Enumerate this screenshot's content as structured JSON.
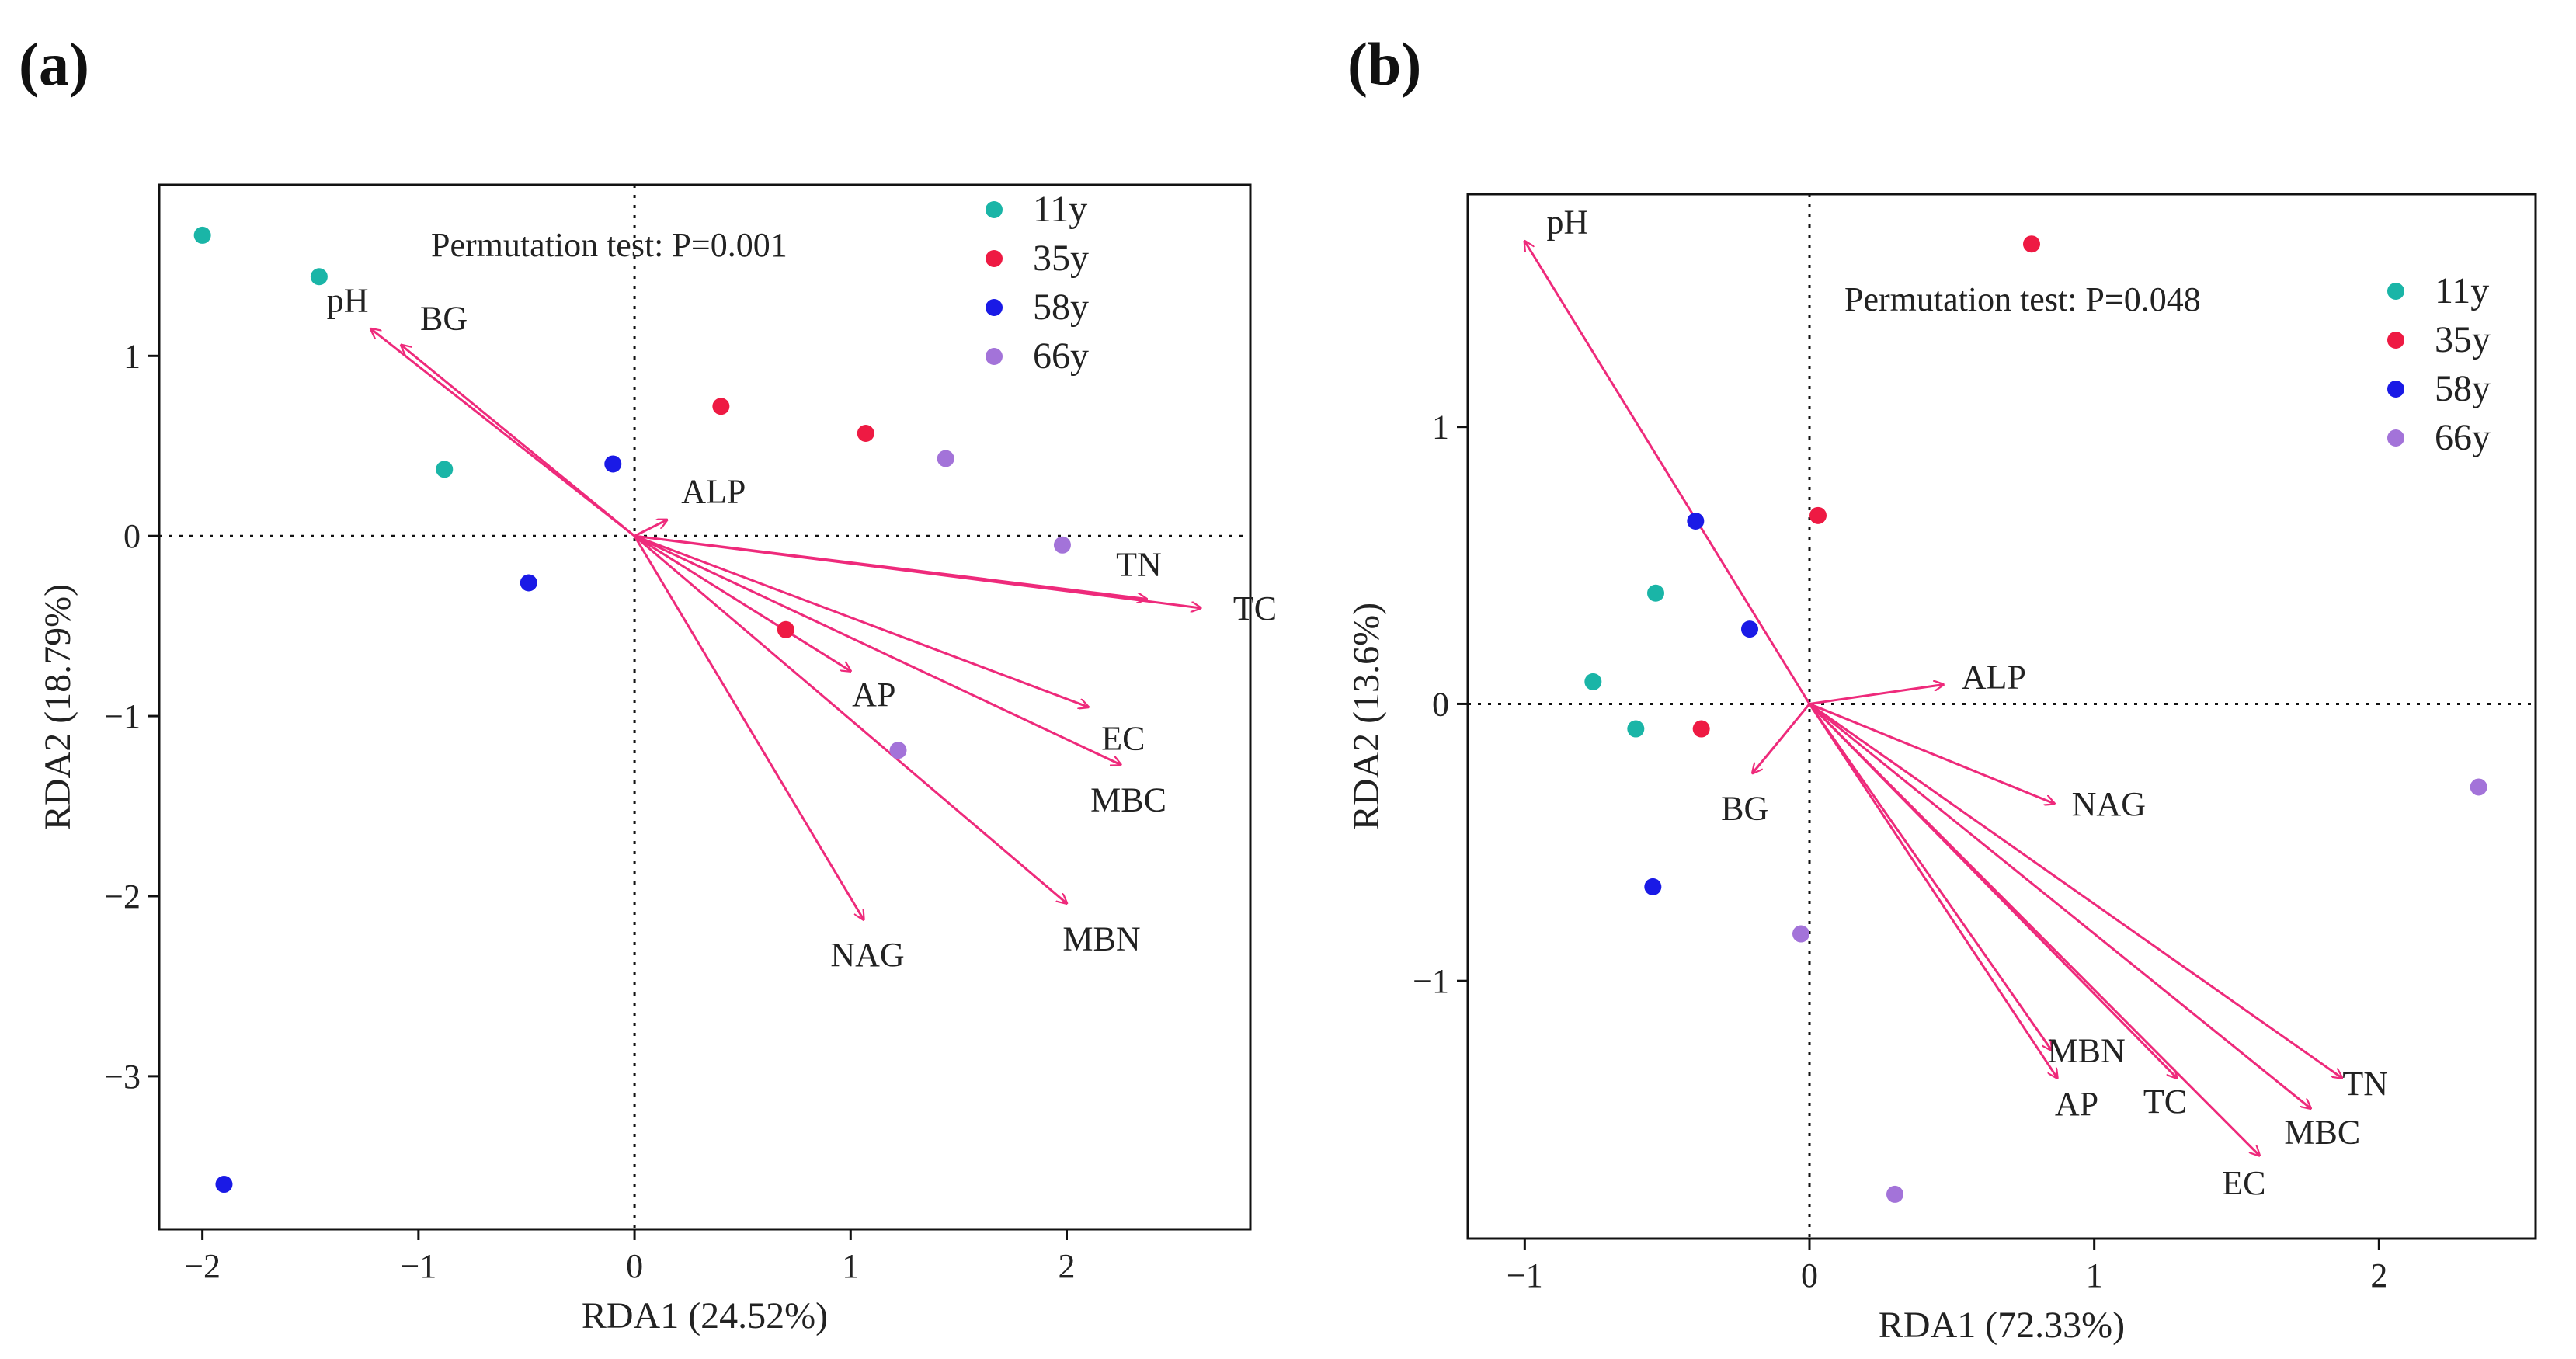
{
  "panels": [
    {
      "panel_label": "(a)",
      "permutation_text": "Permutation test: P=0.001",
      "colors": {
        "11y": "#1ab5a7",
        "35y": "#ee1a43",
        "58y": "#1a1ae6",
        "66y": "#a373d9",
        "arrow": "#ee2a7b"
      }
    },
    {
      "panel_label": "(b)",
      "permutation_text": "Permutation test: P=0.048",
      "colors": {
        "11y": "#1ab5a7",
        "35y": "#ee1a43",
        "58y": "#1a1ae6",
        "66y": "#a373d9",
        "arrow": "#ee2a7b"
      }
    }
  ],
  "chart_data": [
    {
      "type": "scatter",
      "title": "",
      "xlabel": "RDA1 (24.52%)",
      "ylabel": "RDA2 (18.79%)",
      "xlim": [
        -2.2,
        2.85
      ],
      "ylim": [
        -3.85,
        1.95
      ],
      "xticks": [
        -2,
        -1,
        0,
        1,
        2
      ],
      "yticks": [
        -3,
        -2,
        -1,
        0,
        1
      ],
      "xtick_labels": [
        "−2",
        "−1",
        "0",
        "1",
        "2"
      ],
      "ytick_labels": [
        "−3",
        "−2",
        "−1",
        "0",
        "1"
      ],
      "grid": false,
      "legend_position": "top-right",
      "series": [
        {
          "name": "11y",
          "points": [
            [
              -2.0,
              1.67
            ],
            [
              -1.46,
              1.44
            ],
            [
              -0.88,
              0.37
            ]
          ]
        },
        {
          "name": "35y",
          "points": [
            [
              0.4,
              0.72
            ],
            [
              1.07,
              0.57
            ],
            [
              0.7,
              -0.52
            ]
          ]
        },
        {
          "name": "58y",
          "points": [
            [
              -0.1,
              0.4
            ],
            [
              -0.49,
              -0.26
            ],
            [
              -1.9,
              -3.6
            ]
          ]
        },
        {
          "name": "66y",
          "points": [
            [
              1.44,
              0.43
            ],
            [
              1.98,
              -0.05
            ],
            [
              1.22,
              -1.19
            ]
          ]
        }
      ],
      "vectors": [
        {
          "name": "pH",
          "x": -1.22,
          "y": 1.15
        },
        {
          "name": "BG",
          "x": -1.08,
          "y": 1.06
        },
        {
          "name": "ALP",
          "x": 0.15,
          "y": 0.09
        },
        {
          "name": "TN",
          "x": 2.37,
          "y": -0.35
        },
        {
          "name": "TC",
          "x": 2.62,
          "y": -0.4
        },
        {
          "name": "AP",
          "x": 1.0,
          "y": -0.75
        },
        {
          "name": "EC",
          "x": 2.1,
          "y": -0.95
        },
        {
          "name": "MBC",
          "x": 2.25,
          "y": -1.27
        },
        {
          "name": "MBN",
          "x": 2.0,
          "y": -2.04
        },
        {
          "name": "NAG",
          "x": 1.06,
          "y": -2.13
        }
      ]
    },
    {
      "type": "scatter",
      "title": "",
      "xlabel": "RDA1 (72.33%)",
      "ylabel": "RDA2 (13.6%)",
      "xlim": [
        -1.2,
        2.55
      ],
      "ylim": [
        -1.93,
        1.84
      ],
      "xticks": [
        -1,
        0,
        1,
        2
      ],
      "yticks": [
        -1,
        0,
        1
      ],
      "xtick_labels": [
        "−1",
        "0",
        "1",
        "2"
      ],
      "ytick_labels": [
        "−1",
        "0",
        "1"
      ],
      "grid": false,
      "legend_position": "top-right",
      "series": [
        {
          "name": "11y",
          "points": [
            [
              -0.54,
              0.4
            ],
            [
              -0.76,
              0.08
            ],
            [
              -0.61,
              -0.09
            ]
          ]
        },
        {
          "name": "35y",
          "points": [
            [
              0.78,
              1.66
            ],
            [
              0.03,
              0.68
            ],
            [
              -0.38,
              -0.09
            ]
          ]
        },
        {
          "name": "58y",
          "points": [
            [
              -0.4,
              0.66
            ],
            [
              -0.21,
              0.27
            ],
            [
              -0.55,
              -0.66
            ]
          ]
        },
        {
          "name": "66y",
          "points": [
            [
              2.35,
              -0.3
            ],
            [
              -0.03,
              -0.83
            ],
            [
              0.3,
              -1.77
            ]
          ]
        }
      ],
      "vectors": [
        {
          "name": "pH",
          "x": -1.0,
          "y": 1.67
        },
        {
          "name": "ALP",
          "x": 0.47,
          "y": 0.07
        },
        {
          "name": "BG",
          "x": -0.2,
          "y": -0.25
        },
        {
          "name": "NAG",
          "x": 0.86,
          "y": -0.36
        },
        {
          "name": "TN",
          "x": 1.87,
          "y": -1.35
        },
        {
          "name": "MBC",
          "x": 1.76,
          "y": -1.46
        },
        {
          "name": "EC",
          "x": 1.58,
          "y": -1.63
        },
        {
          "name": "TC",
          "x": 1.29,
          "y": -1.35
        },
        {
          "name": "MBN",
          "x": 0.85,
          "y": -1.25
        },
        {
          "name": "AP",
          "x": 0.87,
          "y": -1.35
        }
      ]
    }
  ]
}
